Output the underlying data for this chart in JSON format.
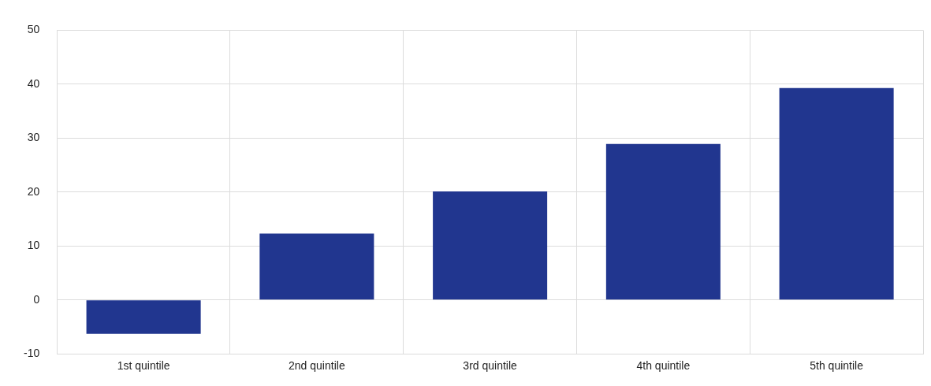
{
  "chart_data": {
    "type": "bar",
    "categories": [
      "1st quintile",
      "2nd quintile",
      "3rd quintile",
      "4th quintile",
      "5th quintile"
    ],
    "values": [
      -6.3,
      12.3,
      20.1,
      28.9,
      39.3
    ],
    "color": "#21368f",
    "ylim": [
      -10,
      50
    ],
    "yticks": [
      -10,
      0,
      10,
      20,
      30,
      40,
      50
    ],
    "grid": true
  }
}
